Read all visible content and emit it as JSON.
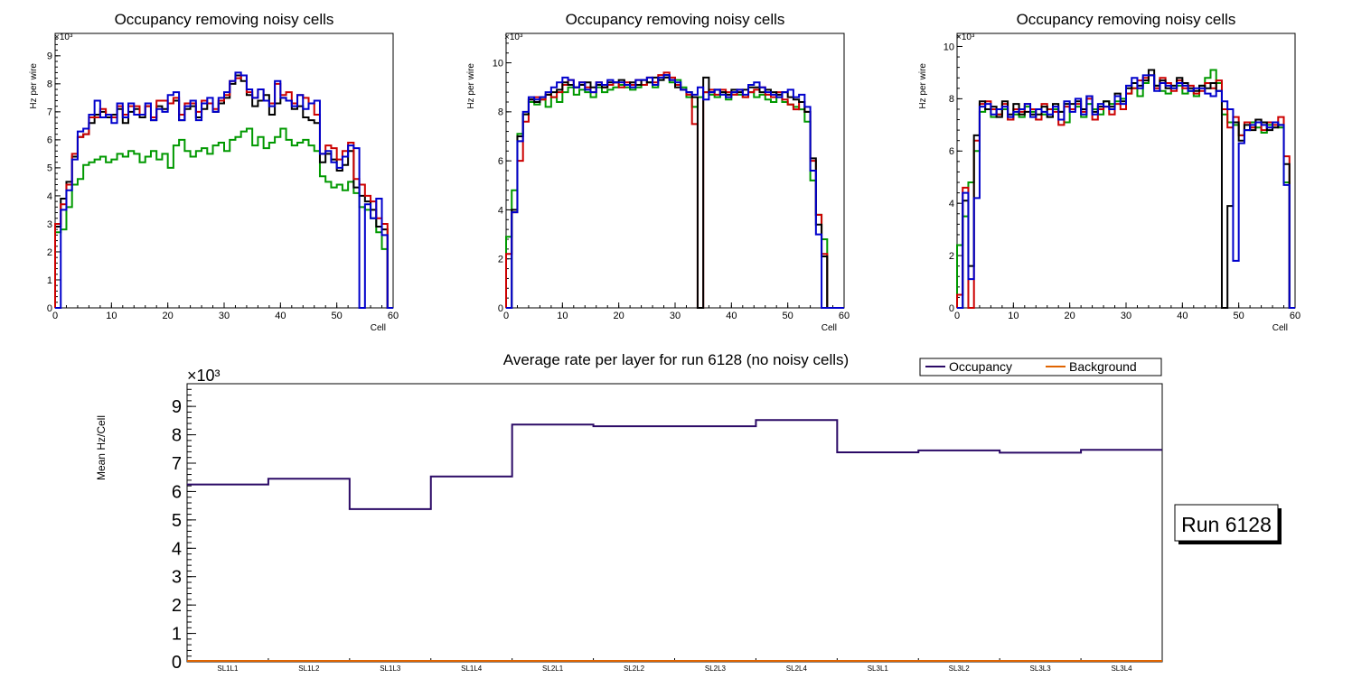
{
  "colors": {
    "black": "#000000",
    "red": "#cc0000",
    "green": "#009900",
    "blue": "#0000cc",
    "occupancy": "#2b0a66",
    "background": "#e06400"
  },
  "chart_data": [
    {
      "type": "line",
      "title": "Occupancy removing noisy cells",
      "xlabel": "Cell",
      "ylabel": "Hz per wire",
      "yexp": "×10³",
      "xlim": [
        0,
        60
      ],
      "ylim": [
        0,
        9.8
      ],
      "xticks": [
        0,
        10,
        20,
        30,
        40,
        50,
        60
      ],
      "yticks": [
        0,
        1,
        2,
        3,
        4,
        5,
        6,
        7,
        8,
        9
      ],
      "series": [
        {
          "name": "green",
          "color": "#009900",
          "values": [
            2.7,
            2.8,
            3.6,
            4.4,
            4.6,
            5.1,
            5.2,
            5.3,
            5.4,
            5.2,
            5.3,
            5.5,
            5.4,
            5.6,
            5.5,
            5.2,
            5.4,
            5.6,
            5.3,
            5.5,
            5.0,
            5.8,
            6.0,
            5.6,
            5.4,
            5.6,
            5.7,
            5.5,
            5.8,
            5.9,
            5.6,
            6.0,
            6.1,
            6.3,
            6.4,
            5.8,
            6.1,
            5.7,
            5.9,
            6.1,
            6.4,
            6.0,
            5.8,
            5.9,
            6.0,
            5.8,
            5.6,
            4.7,
            4.5,
            4.3,
            4.4,
            4.2,
            4.5,
            4.1,
            3.6,
            3.5,
            3.2,
            2.7,
            2.1,
            0
          ]
        },
        {
          "name": "black",
          "color": "#000000",
          "values": [
            2.9,
            3.9,
            4.5,
            5.4,
            6.1,
            6.2,
            6.6,
            6.9,
            7.0,
            6.8,
            6.9,
            7.1,
            6.6,
            7.0,
            7.1,
            6.8,
            7.2,
            6.7,
            7.2,
            7.1,
            7.3,
            7.4,
            6.7,
            7.1,
            7.2,
            6.8,
            7.1,
            7.3,
            7.0,
            7.3,
            7.5,
            8.0,
            8.3,
            8.1,
            7.6,
            7.2,
            7.4,
            7.6,
            6.9,
            7.3,
            7.5,
            7.4,
            7.1,
            7.2,
            6.8,
            6.7,
            6.6,
            5.2,
            5.5,
            5.3,
            4.9,
            5.1,
            5.6,
            4.3,
            4.0,
            3.8,
            3.5,
            2.9,
            2.8,
            0
          ]
        },
        {
          "name": "red",
          "color": "#cc0000",
          "values": [
            3.0,
            3.7,
            4.4,
            5.5,
            6.1,
            6.2,
            6.8,
            6.8,
            7.1,
            6.9,
            6.8,
            7.2,
            6.9,
            7.2,
            7.2,
            6.9,
            7.2,
            6.8,
            7.4,
            7.4,
            7.3,
            7.5,
            6.9,
            7.3,
            7.3,
            7.0,
            7.4,
            7.3,
            7.1,
            7.4,
            7.6,
            8.1,
            8.2,
            8.3,
            7.7,
            7.5,
            7.8,
            7.4,
            7.3,
            8.0,
            7.6,
            7.7,
            7.3,
            7.6,
            7.5,
            7.3,
            6.9,
            5.5,
            5.8,
            5.7,
            5.3,
            5.6,
            5.9,
            4.6,
            4.4,
            4.0,
            3.8,
            3.2,
            3.0,
            0
          ]
        },
        {
          "name": "blue",
          "color": "#0000cc",
          "values": [
            0,
            3.5,
            4.2,
            5.3,
            6.3,
            6.4,
            6.9,
            7.4,
            6.8,
            6.9,
            6.6,
            7.3,
            6.8,
            7.3,
            6.9,
            6.9,
            7.3,
            6.7,
            7.1,
            7.0,
            7.6,
            7.7,
            6.7,
            7.2,
            7.4,
            6.7,
            7.3,
            7.5,
            7.0,
            7.5,
            7.7,
            8.1,
            8.4,
            8.3,
            7.8,
            7.5,
            7.8,
            7.4,
            7.2,
            8.1,
            7.5,
            7.4,
            7.2,
            7.6,
            7.1,
            7.3,
            7.4,
            5.5,
            5.6,
            5.2,
            5.0,
            5.4,
            5.8,
            5.7,
            0,
            3.7,
            3.2,
            3.9,
            2.6,
            0
          ]
        }
      ]
    },
    {
      "type": "line",
      "title": "Occupancy removing noisy cells",
      "xlabel": "Cell",
      "ylabel": "Hz per wire",
      "yexp": "×10³",
      "xlim": [
        0,
        60
      ],
      "ylim": [
        0,
        11.2
      ],
      "xticks": [
        0,
        10,
        20,
        30,
        40,
        50,
        60
      ],
      "yticks": [
        0,
        2,
        4,
        6,
        8,
        10
      ],
      "series": [
        {
          "name": "green",
          "color": "#009900",
          "values": [
            2.9,
            4.8,
            7.1,
            7.9,
            8.4,
            8.3,
            8.5,
            8.2,
            8.6,
            8.4,
            8.8,
            9.0,
            8.7,
            8.9,
            8.8,
            8.6,
            9.0,
            8.8,
            8.9,
            9.0,
            9.1,
            9.0,
            8.9,
            9.0,
            9.1,
            9.2,
            9.0,
            9.3,
            9.5,
            9.2,
            9.3,
            9.0,
            8.6,
            8.2,
            8.6,
            8.8,
            8.7,
            8.6,
            8.8,
            8.5,
            8.8,
            8.7,
            8.6,
            8.8,
            8.6,
            8.7,
            8.5,
            8.4,
            8.6,
            8.4,
            8.3,
            8.2,
            8.1,
            7.6,
            5.2,
            3.8,
            2.8,
            0,
            0,
            0
          ]
        },
        {
          "name": "red",
          "color": "#cc0000",
          "values": [
            2.2,
            3.9,
            6.0,
            7.6,
            8.5,
            8.6,
            8.5,
            8.7,
            8.6,
            8.8,
            9.1,
            9.3,
            9.0,
            9.2,
            9.0,
            8.8,
            9.2,
            9.0,
            9.1,
            9.2,
            9.0,
            9.2,
            9.1,
            9.3,
            9.1,
            9.4,
            9.2,
            9.5,
            9.6,
            9.4,
            9.1,
            8.9,
            8.7,
            7.5,
            0,
            8.8,
            8.9,
            8.7,
            8.9,
            8.8,
            8.7,
            8.9,
            8.6,
            8.8,
            8.9,
            9.0,
            8.7,
            8.6,
            8.8,
            8.5,
            8.3,
            8.1,
            8.4,
            8.0,
            6.0,
            3.8,
            2.2,
            0,
            0,
            0
          ]
        },
        {
          "name": "black",
          "color": "#000000",
          "values": [
            0,
            4.0,
            7.0,
            7.9,
            8.5,
            8.4,
            8.6,
            8.7,
            8.8,
            8.9,
            9.2,
            9.1,
            9.0,
            9.1,
            9.2,
            9.0,
            9.1,
            9.0,
            9.2,
            9.2,
            9.3,
            9.1,
            9.2,
            9.1,
            9.3,
            9.2,
            9.4,
            9.3,
            9.4,
            9.3,
            9.0,
            8.9,
            8.8,
            8.6,
            0,
            9.4,
            8.8,
            8.9,
            8.8,
            8.7,
            8.9,
            8.8,
            8.9,
            9.0,
            9.0,
            8.8,
            8.9,
            8.8,
            8.7,
            8.8,
            8.6,
            8.5,
            8.4,
            8.0,
            6.1,
            3.4,
            2.1,
            0,
            0,
            0
          ]
        },
        {
          "name": "blue",
          "color": "#0000cc",
          "values": [
            0,
            3.9,
            6.8,
            8.0,
            8.6,
            8.5,
            8.6,
            8.8,
            9.0,
            9.2,
            9.4,
            9.3,
            9.0,
            9.2,
            8.9,
            8.8,
            9.2,
            9.1,
            9.3,
            9.2,
            9.2,
            9.1,
            9.0,
            9.3,
            9.3,
            9.4,
            9.1,
            9.4,
            9.5,
            9.3,
            9.2,
            8.9,
            8.8,
            8.7,
            9.0,
            8.5,
            8.8,
            8.9,
            8.7,
            8.6,
            8.8,
            8.9,
            8.7,
            9.1,
            9.2,
            9.0,
            8.8,
            8.7,
            8.6,
            8.8,
            8.9,
            8.6,
            8.7,
            8.2,
            5.6,
            3.0,
            0,
            0,
            0,
            0
          ]
        }
      ]
    },
    {
      "type": "line",
      "title": "Occupancy removing noisy cells",
      "xlabel": "Cell",
      "ylabel": "Hz per wire",
      "yexp": "×10³",
      "xlim": [
        0,
        60
      ],
      "ylim": [
        0,
        10.5
      ],
      "xticks": [
        0,
        10,
        20,
        30,
        40,
        50,
        60
      ],
      "yticks": [
        0,
        2,
        4,
        6,
        8,
        10
      ],
      "series": [
        {
          "name": "green",
          "color": "#009900",
          "values": [
            2.4,
            3.5,
            4.8,
            6.0,
            7.5,
            7.6,
            7.3,
            7.4,
            7.6,
            7.2,
            7.4,
            7.3,
            7.7,
            7.5,
            7.2,
            7.4,
            7.3,
            7.6,
            7.5,
            7.1,
            7.6,
            7.7,
            7.3,
            7.8,
            7.6,
            7.4,
            7.9,
            7.8,
            7.9,
            8.0,
            8.2,
            8.4,
            8.1,
            8.6,
            8.9,
            8.5,
            8.3,
            8.2,
            8.4,
            8.5,
            8.2,
            8.3,
            8.1,
            8.5,
            8.8,
            9.1,
            8.6,
            7.4,
            7.1,
            7.0,
            6.6,
            6.8,
            7.1,
            6.9,
            6.7,
            7.0,
            7.1,
            6.9,
            4.8,
            0
          ]
        },
        {
          "name": "red",
          "color": "#cc0000",
          "values": [
            0.5,
            4.6,
            0,
            6.4,
            7.8,
            7.9,
            7.6,
            7.4,
            7.8,
            7.2,
            7.6,
            7.5,
            7.8,
            7.6,
            7.2,
            7.8,
            7.6,
            7.5,
            7.0,
            7.7,
            7.6,
            7.8,
            7.5,
            8.0,
            7.2,
            7.6,
            7.7,
            7.4,
            7.8,
            7.6,
            8.2,
            8.4,
            8.7,
            8.8,
            8.9,
            8.4,
            8.8,
            8.6,
            8.3,
            8.7,
            8.4,
            8.5,
            8.2,
            8.3,
            8.6,
            8.4,
            8.7,
            7.6,
            6.9,
            7.3,
            6.6,
            7.1,
            6.9,
            7.2,
            6.8,
            7.1,
            7.0,
            7.3,
            5.8,
            0
          ]
        },
        {
          "name": "black",
          "color": "#000000",
          "values": [
            0,
            4.1,
            1.6,
            6.6,
            7.9,
            7.6,
            7.7,
            7.3,
            7.9,
            7.4,
            7.8,
            7.4,
            7.5,
            7.4,
            7.4,
            7.7,
            7.3,
            7.8,
            7.5,
            7.8,
            7.8,
            7.9,
            7.6,
            8.1,
            7.5,
            7.7,
            7.9,
            7.7,
            8.2,
            7.9,
            8.4,
            8.6,
            8.5,
            8.7,
            9.1,
            8.5,
            8.7,
            8.4,
            8.5,
            8.8,
            8.6,
            8.4,
            8.3,
            8.5,
            8.4,
            8.6,
            8.3,
            0,
            3.9,
            7.1,
            6.4,
            7.0,
            6.8,
            7.2,
            7.1,
            6.8,
            6.9,
            7.0,
            5.5,
            0
          ]
        },
        {
          "name": "blue",
          "color": "#0000cc",
          "values": [
            0,
            4.4,
            1.1,
            4.2,
            7.7,
            7.8,
            7.4,
            7.6,
            7.7,
            7.3,
            7.5,
            7.6,
            7.8,
            7.3,
            7.6,
            7.5,
            7.4,
            7.7,
            7.2,
            7.9,
            7.5,
            8.0,
            7.4,
            8.1,
            7.4,
            7.8,
            7.7,
            7.6,
            8.1,
            7.8,
            8.5,
            8.8,
            8.4,
            8.9,
            8.9,
            8.3,
            8.6,
            8.5,
            8.4,
            8.6,
            8.5,
            8.3,
            8.4,
            8.4,
            8.2,
            8.1,
            8.3,
            7.9,
            7.6,
            1.8,
            6.3,
            6.8,
            7.0,
            7.1,
            7.0,
            6.9,
            7.1,
            7.0,
            4.7,
            0
          ]
        }
      ]
    },
    {
      "type": "line",
      "title": "Average rate per layer for run 6128 (no noisy cells)",
      "xlabel": "",
      "ylabel": "Mean Hz/Cell",
      "yexp": "×10³",
      "ylim": [
        0,
        9.8
      ],
      "yticks": [
        0,
        1,
        2,
        3,
        4,
        5,
        6,
        7,
        8,
        9
      ],
      "categories": [
        "SL1L1",
        "SL1L2",
        "SL1L3",
        "SL1L4",
        "SL2L1",
        "SL2L2",
        "SL2L3",
        "SL2L4",
        "SL3L1",
        "SL3L2",
        "SL3L3",
        "SL3L4"
      ],
      "series": [
        {
          "name": "Occupancy",
          "color": "#2b0a66",
          "values": [
            6.25,
            6.45,
            5.38,
            6.53,
            8.36,
            8.3,
            8.3,
            8.52,
            7.38,
            7.45,
            7.37,
            7.47
          ]
        },
        {
          "name": "Background",
          "color": "#e06400",
          "values": [
            0.03,
            0.03,
            0.03,
            0.03,
            0.03,
            0.03,
            0.03,
            0.03,
            0.03,
            0.03,
            0.03,
            0.03
          ]
        }
      ],
      "legend": [
        "Occupancy",
        "Background"
      ],
      "annotation": "Run 6128"
    }
  ]
}
